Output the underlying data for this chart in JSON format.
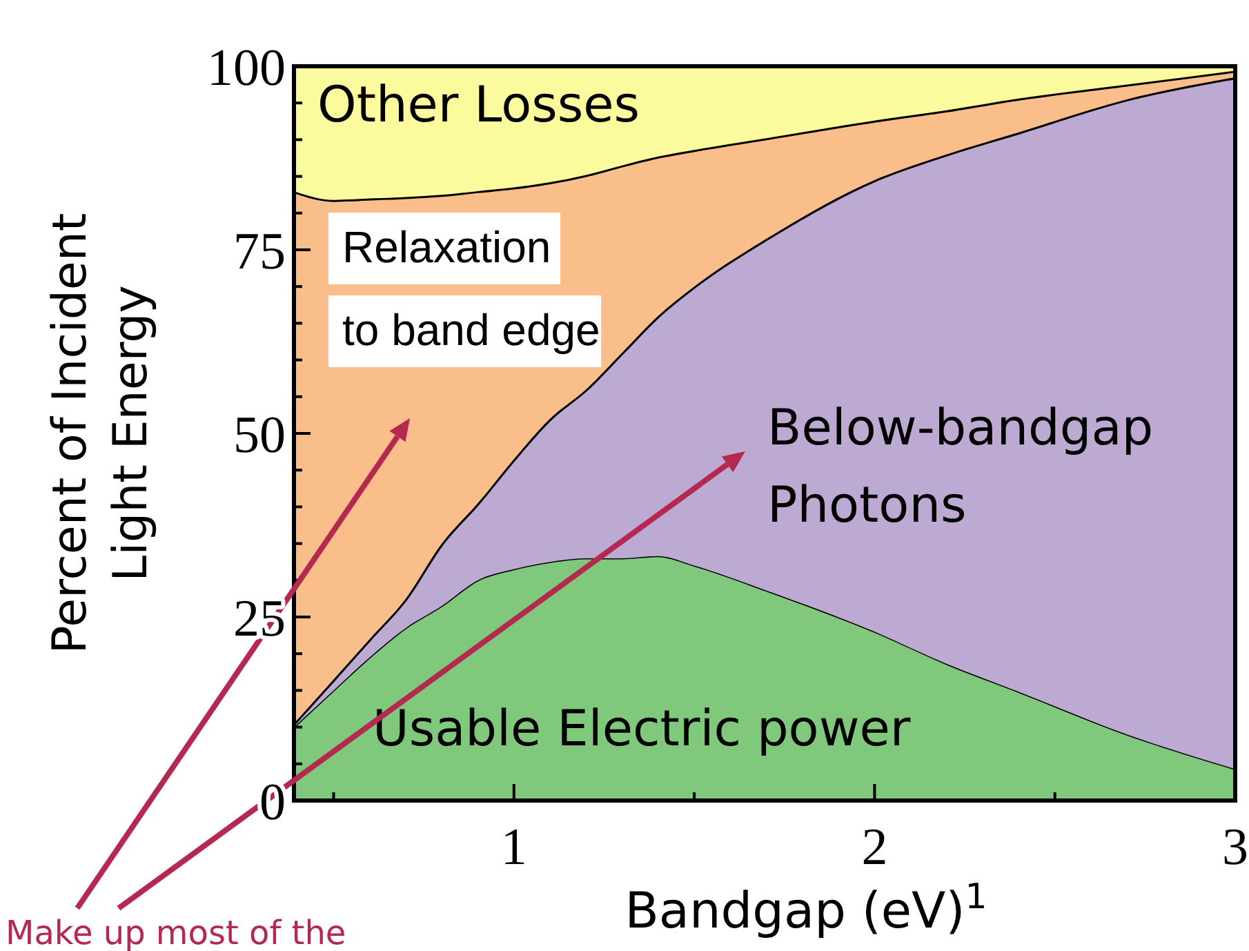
{
  "chart_data": {
    "type": "area",
    "stacked": true,
    "xlabel": "Bandgap (eV)$^{1}$",
    "ylabel": "Percent of Incident Light Energy",
    "x": [
      0.39,
      0.5,
      0.6,
      0.7,
      0.8,
      0.9,
      1.0,
      1.1,
      1.2,
      1.3,
      1.4,
      1.5,
      1.7,
      2.0,
      2.2,
      2.4,
      2.7,
      3.0
    ],
    "series": [
      {
        "name": "Usable Electric power",
        "color": "#80c87c",
        "values": [
          10,
          15,
          19.5,
          23.5,
          26.5,
          30,
          31.5,
          32.5,
          33,
          33,
          33.3,
          32,
          28.6,
          23,
          18.6,
          14.8,
          9,
          4.3
        ]
      },
      {
        "name": "Below-bandgap Photons",
        "color": "#bcaad2",
        "values": [
          0.5,
          1.5,
          2.5,
          4,
          8.5,
          10.5,
          15,
          19.5,
          23,
          28,
          32.7,
          38,
          47.9,
          61.5,
          69.4,
          76.2,
          86.5,
          94.2
        ]
      },
      {
        "name": "Relaxation to band edge",
        "color": "#f9be89",
        "values": [
          72.5,
          65.3,
          60,
          54.7,
          47.5,
          42.5,
          37,
          32.2,
          29.2,
          25.5,
          21.7,
          18.6,
          13.7,
          8.1,
          6,
          4.6,
          2,
          0.9
        ]
      },
      {
        "name": "Other Losses",
        "color": "#fbfa9c",
        "values": [
          17,
          18.2,
          18,
          17.8,
          17.5,
          17,
          16.5,
          15.8,
          14.8,
          13.5,
          12.3,
          11.4,
          9.8,
          7.4,
          6,
          4.4,
          2.5,
          0.6
        ]
      }
    ],
    "xlim": [
      0.39,
      3
    ],
    "xticks": [
      {
        "value": 0.5,
        "label": null
      },
      1,
      {
        "value": 1.5,
        "label": null
      },
      2,
      {
        "value": 2.5,
        "label": null
      },
      3
    ],
    "ylim": [
      0,
      100
    ],
    "yticks": [
      0,
      {
        "value": 5,
        "label": null
      },
      {
        "value": 10,
        "label": null
      },
      {
        "value": 15,
        "label": null
      },
      {
        "value": 20,
        "label": null
      },
      25,
      {
        "value": 30,
        "label": null
      },
      {
        "value": 35,
        "label": null
      },
      {
        "value": 40,
        "label": null
      },
      {
        "value": 45,
        "label": null
      },
      50,
      {
        "value": 55,
        "label": null
      },
      {
        "value": 60,
        "label": null
      },
      {
        "value": 65,
        "label": null
      },
      {
        "value": 70,
        "label": null
      },
      75,
      {
        "value": 80,
        "label": null
      },
      {
        "value": 85,
        "label": null
      },
      {
        "value": 90,
        "label": null
      },
      {
        "value": 95,
        "label": null
      },
      100
    ],
    "grid": false,
    "legend": false,
    "annotations": [
      "Make up most of the"
    ]
  }
}
